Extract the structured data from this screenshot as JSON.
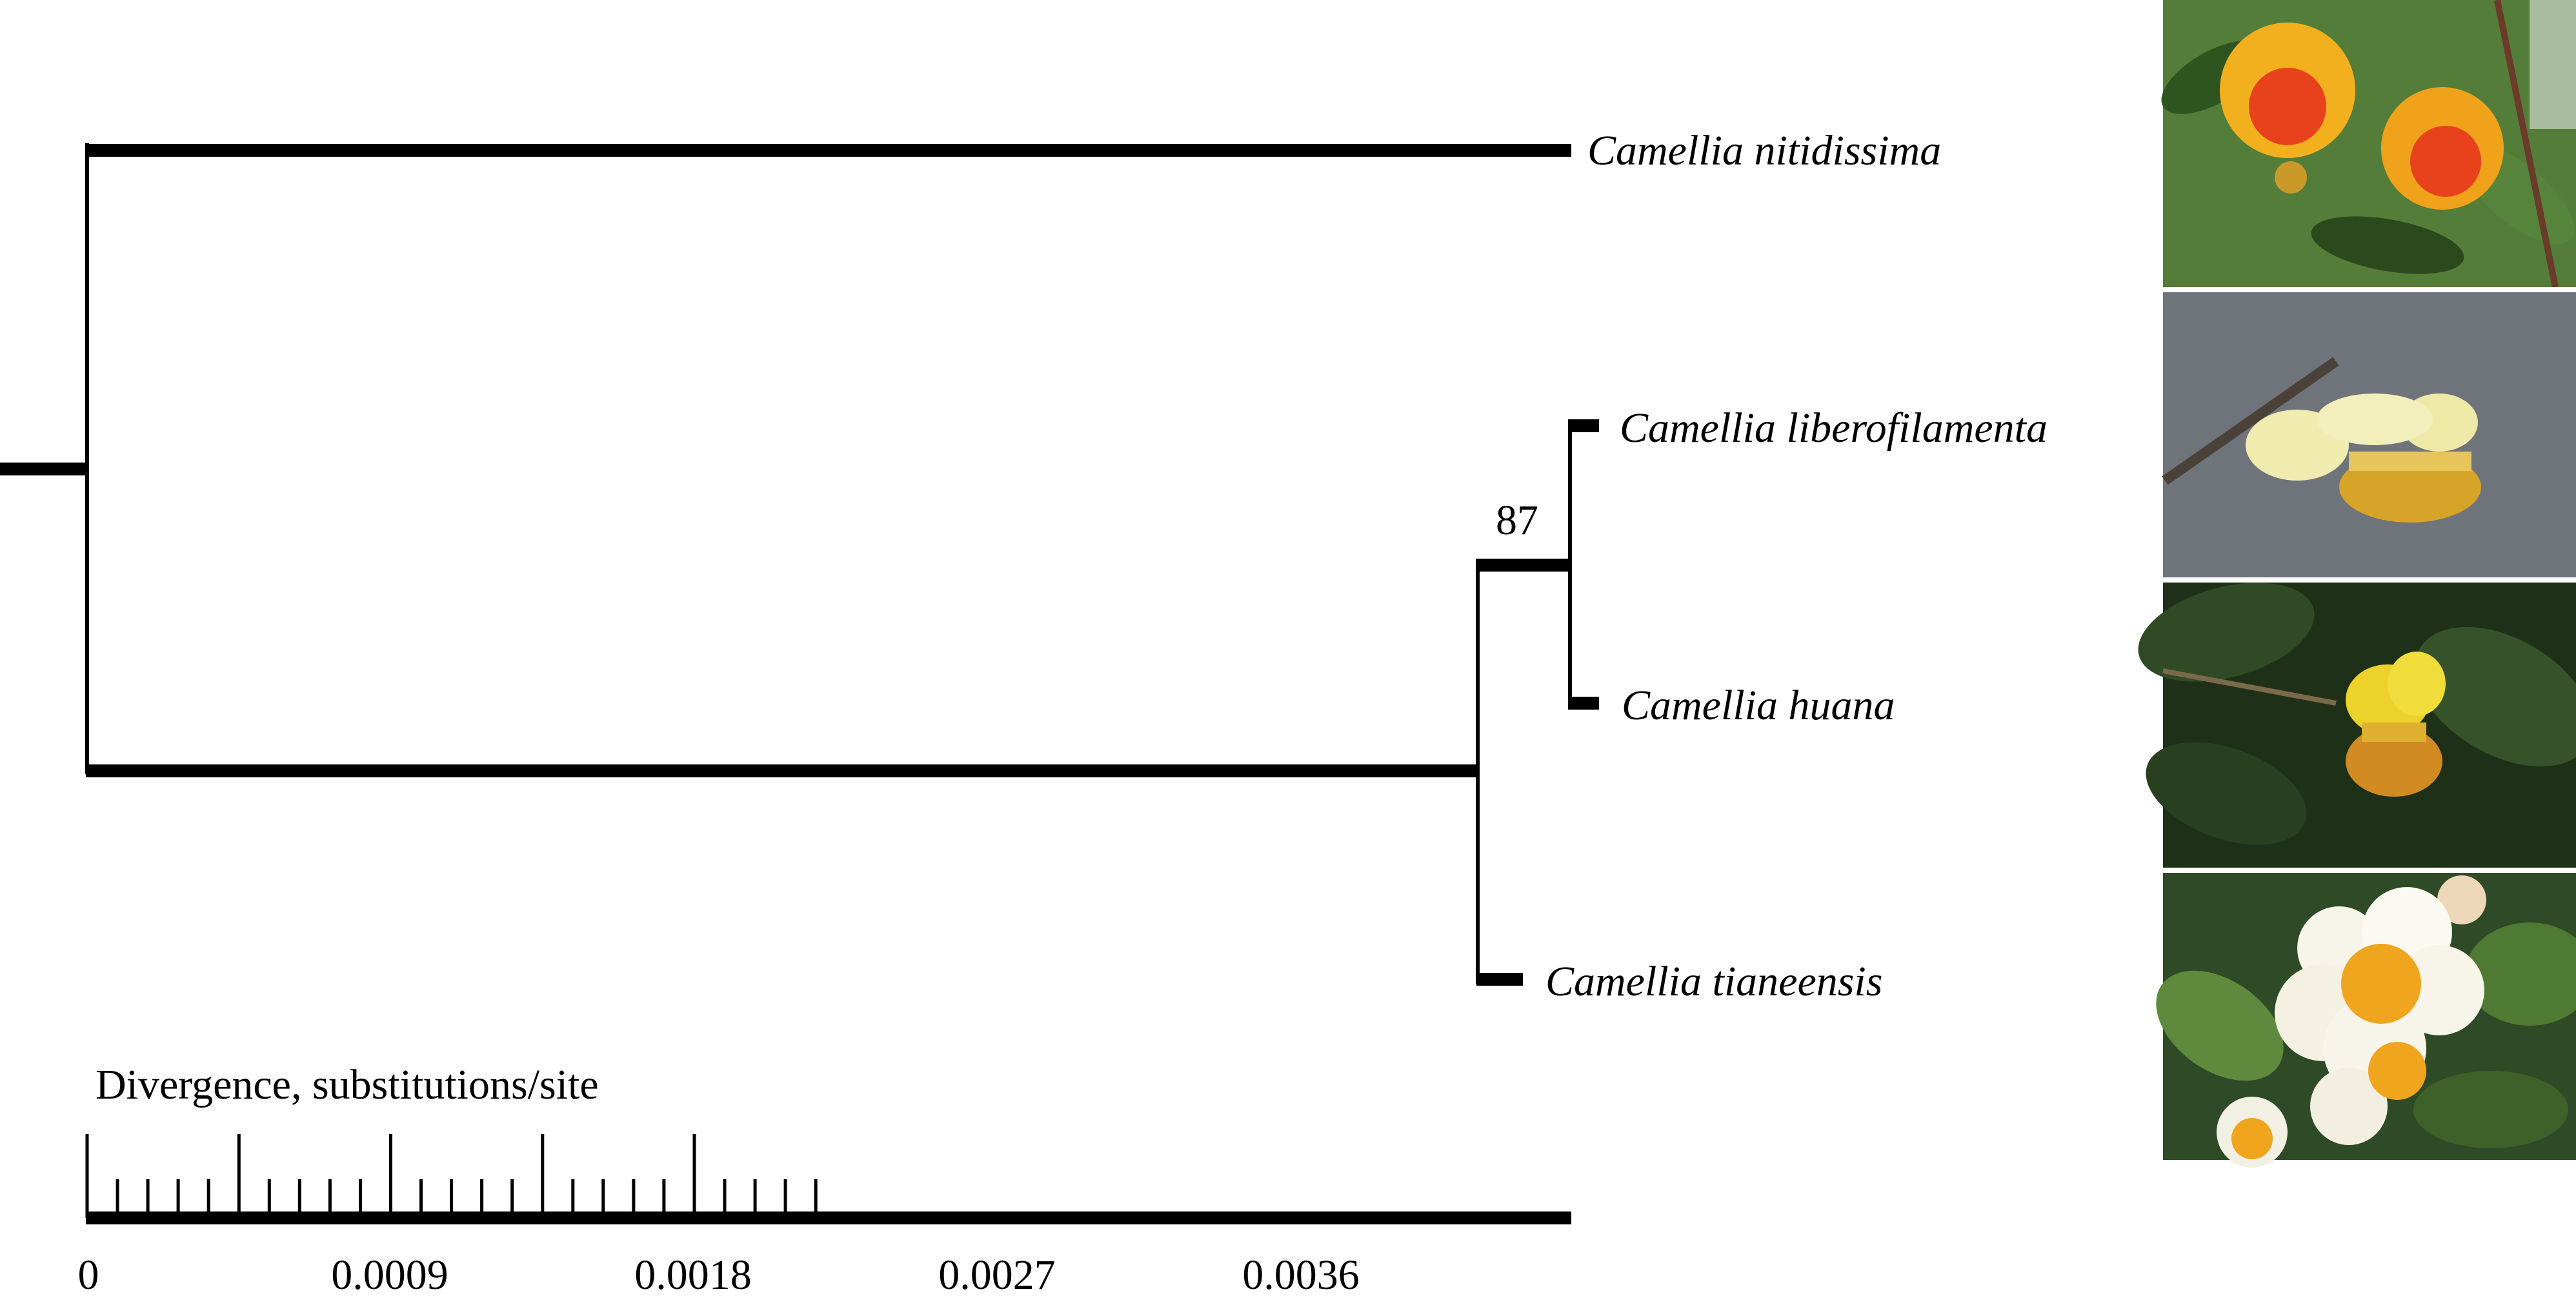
{
  "tree": {
    "taxa": [
      {
        "id": "nitidissima",
        "label": "Camellia nitidissima"
      },
      {
        "id": "liberofilamenta",
        "label": "Camellia liberofilamenta"
      },
      {
        "id": "huana",
        "label": "Camellia huana"
      },
      {
        "id": "tianeensis",
        "label": "Camellia tianeensis"
      }
    ],
    "support_values": [
      "87"
    ]
  },
  "scale": {
    "title": "Divergence, substitutions/site",
    "labels": [
      "0",
      "0.0009",
      "0.0018",
      "0.0027",
      "0.0036"
    ]
  },
  "photos": [
    {
      "name": "photo-camellia-nitidissima-icon",
      "petal": "#f2b01e",
      "center": "#e8421c",
      "bg": "#3f6a2c"
    },
    {
      "name": "photo-camellia-liberofilamenta-icon",
      "petal": "#f0ecb0",
      "center": "#d7a42a",
      "bg": "#5c6068"
    },
    {
      "name": "photo-camellia-huana-icon",
      "petal": "#ecd22a",
      "center": "#d28a22",
      "bg": "#1f3018"
    },
    {
      "name": "photo-camellia-tianeensis-icon",
      "petal": "#f7f5ea",
      "center": "#f0a51f",
      "bg": "#2f4a26"
    }
  ]
}
